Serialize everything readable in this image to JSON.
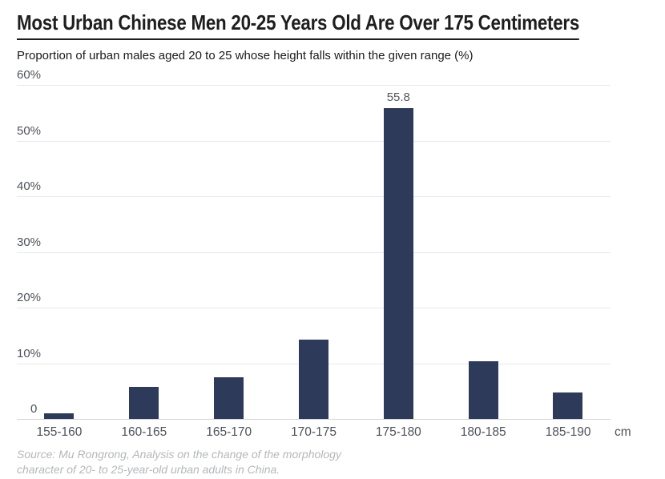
{
  "header": {
    "title": "Most Urban Chinese Men 20-25 Years Old Are Over 175 Centimeters",
    "subtitle": "Proportion of urban males aged 20 to 25 whose height falls within the given range (%)"
  },
  "chart_data": {
    "type": "bar",
    "title": "Most Urban Chinese Men 20-25 Years Old Are Over 175 Centimeters",
    "subtitle": "Proportion of urban males aged 20 to 25 whose height falls within the given range (%)",
    "categories": [
      "155-160",
      "160-165",
      "165-170",
      "170-175",
      "175-180",
      "180-185",
      "185-190"
    ],
    "values": [
      1.0,
      5.8,
      7.5,
      14.2,
      55.8,
      10.4,
      4.7
    ],
    "value_labels": [
      null,
      null,
      null,
      null,
      "55.8",
      null,
      null
    ],
    "unit_label": "cm",
    "yticks": [
      0,
      10,
      20,
      30,
      40,
      50,
      60
    ],
    "ytick_labels": [
      "0",
      "10%",
      "20%",
      "30%",
      "40%",
      "50%",
      "60%"
    ],
    "ylim": [
      0,
      60
    ],
    "grid": true,
    "legend": null,
    "bar_color": "#2e3a5a",
    "grid_color": "#e7e8ec",
    "axis_line_color": "#d2d5da"
  },
  "footer": {
    "source": "Source: Mu Rongrong, Analysis on the change of the morphology character of 20- to 25-year-old urban adults in China."
  }
}
